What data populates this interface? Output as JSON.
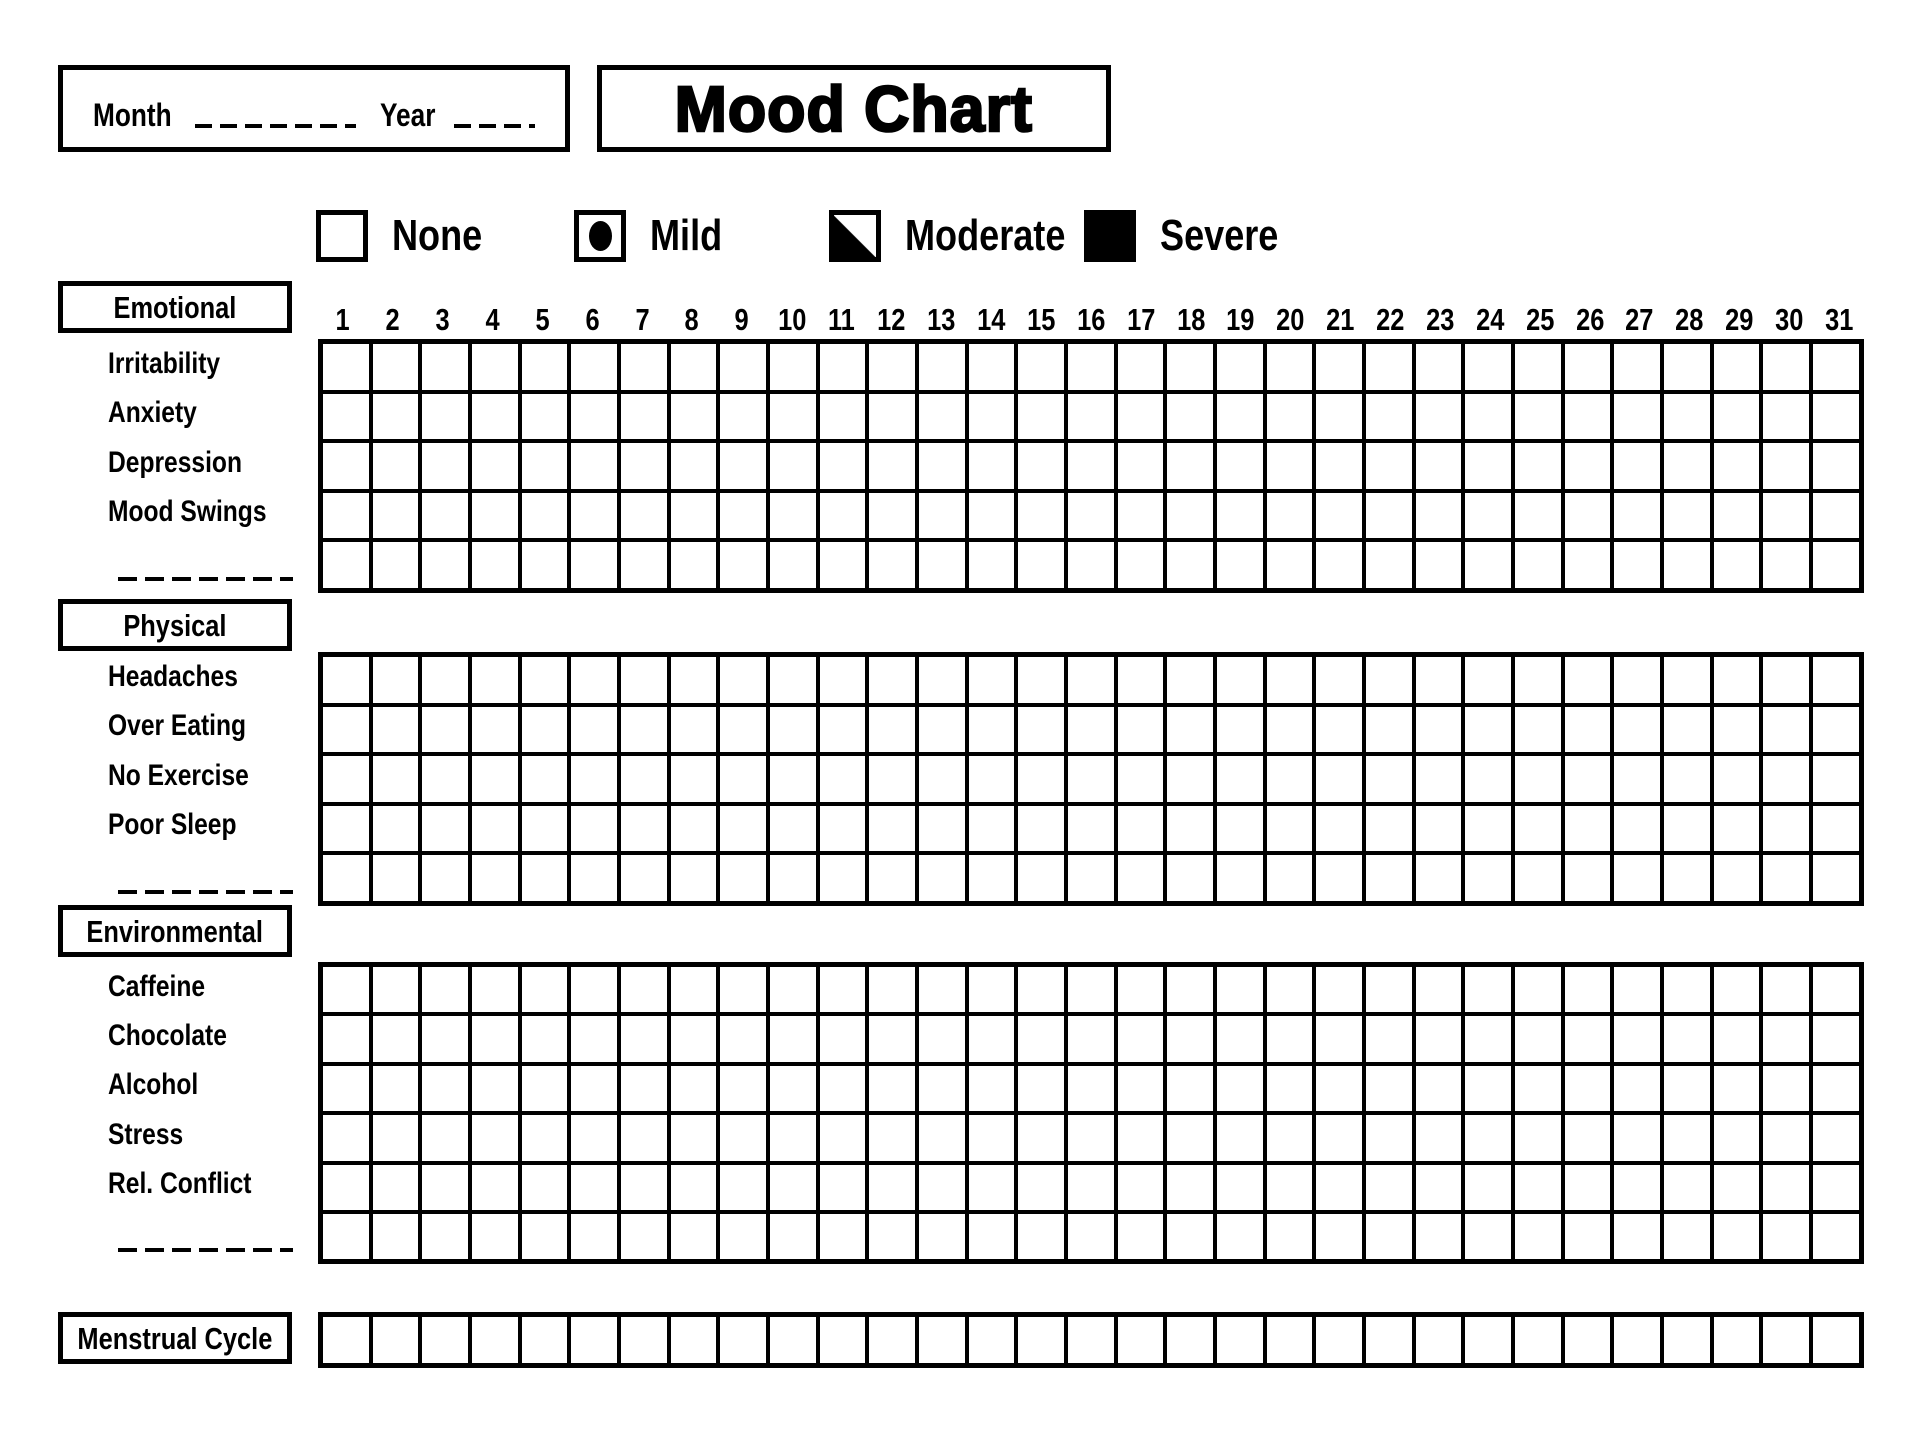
{
  "header": {
    "month_label": "Month",
    "year_label": "Year",
    "title": "Mood Chart"
  },
  "legend": [
    {
      "label": "None",
      "style": "none"
    },
    {
      "label": "Mild",
      "style": "mild"
    },
    {
      "label": "Moderate",
      "style": "moderate"
    },
    {
      "label": "Severe",
      "style": "severe"
    }
  ],
  "days": [
    "1",
    "2",
    "3",
    "4",
    "5",
    "6",
    "7",
    "8",
    "9",
    "10",
    "11",
    "12",
    "13",
    "14",
    "15",
    "16",
    "17",
    "18",
    "19",
    "20",
    "21",
    "22",
    "23",
    "24",
    "25",
    "26",
    "27",
    "28",
    "29",
    "30",
    "31"
  ],
  "sections": [
    {
      "title": "Emotional",
      "rows": [
        "Irritability",
        "Anxiety",
        "Depression",
        "Mood Swings",
        ""
      ],
      "writein_last_row": true
    },
    {
      "title": "Physical",
      "rows": [
        "Headaches",
        "Over Eating",
        "No Exercise",
        "Poor Sleep",
        ""
      ],
      "writein_last_row": true
    },
    {
      "title": "Environmental",
      "rows": [
        "Caffeine",
        "Chocolate",
        "Alcohol",
        "Stress",
        "Rel. Conflict",
        ""
      ],
      "writein_last_row": true
    },
    {
      "title": "Menstrual Cycle",
      "rows": [
        ""
      ],
      "writein_last_row": false
    }
  ],
  "colors": {
    "ink": "#000000",
    "paper": "#ffffff"
  }
}
